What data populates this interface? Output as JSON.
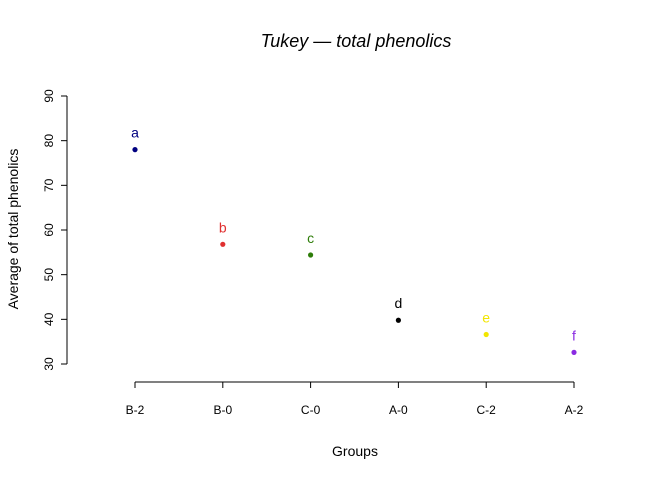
{
  "chart_data": {
    "type": "scatter",
    "title": "Tukey — total phenolics",
    "xlabel": "Groups",
    "ylabel": "Average of total phenolics",
    "ylim": [
      30,
      90
    ],
    "yticks": [
      30,
      40,
      50,
      60,
      70,
      80,
      90
    ],
    "categories": [
      "B-2",
      "B-0",
      "C-0",
      "A-0",
      "C-2",
      "A-2"
    ],
    "values": [
      78.0,
      56.8,
      54.4,
      39.8,
      36.6,
      32.6
    ],
    "letters": [
      "a",
      "b",
      "c",
      "d",
      "e",
      "f"
    ],
    "colors": [
      "#000080",
      "#e03030",
      "#2e7d0a",
      "#000000",
      "#f2e600",
      "#8a2be2"
    ],
    "grid": false,
    "legend": "none"
  }
}
